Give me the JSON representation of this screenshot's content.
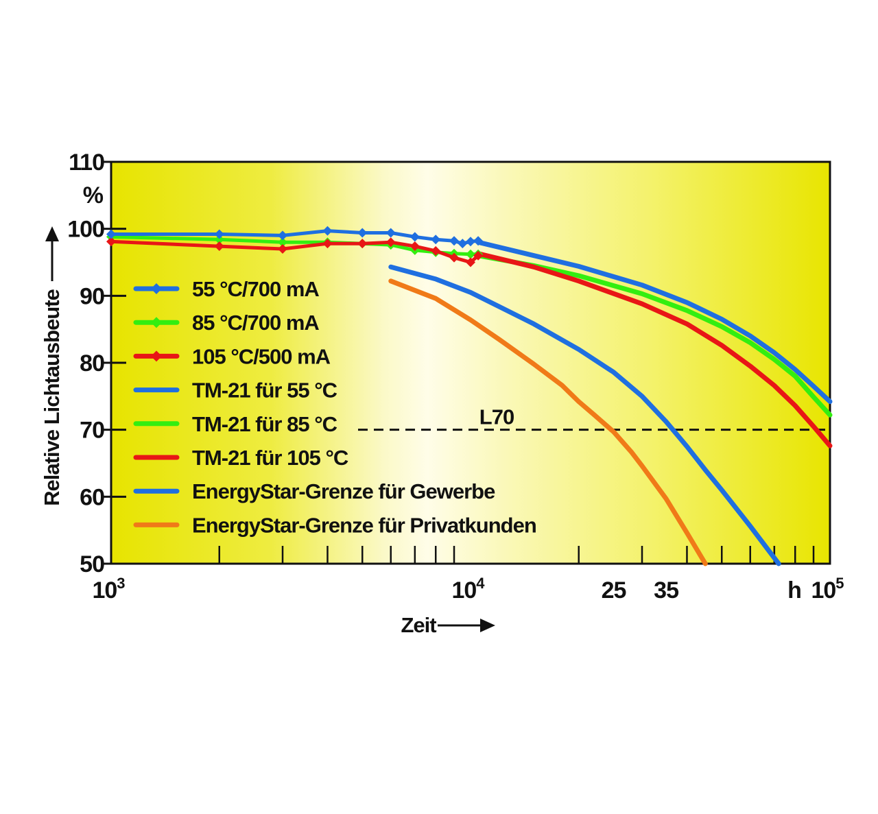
{
  "chart_data": {
    "type": "line",
    "x_scale": "log",
    "xlim": [
      1000,
      100000
    ],
    "ylim": [
      50,
      110
    ],
    "y_unit": "%",
    "ylabel": "Relative Lichtausbeute",
    "xlabel": "Zeit",
    "x_unit": "h",
    "y_ticks": [
      "50",
      "60",
      "70",
      "80",
      "90",
      "100",
      "110"
    ],
    "x_tick_labels": [
      {
        "base": "10",
        "exp": "3",
        "value": 1000
      },
      {
        "base": "10",
        "exp": "4",
        "value": 10000
      },
      {
        "base": "25",
        "exp": "",
        "value": 25000
      },
      {
        "base": "35",
        "exp": "",
        "value": 35000
      },
      {
        "base": "10",
        "exp": "5",
        "value": 100000
      }
    ],
    "reference_line": {
      "label": "L70",
      "y": 70,
      "x_from": 5000,
      "x_to": 100000
    },
    "legend_position": "left",
    "series": [
      {
        "name": "55 °C/700 mA",
        "color": "#1f6fe0",
        "kind": "measured",
        "x": [
          1000,
          2000,
          3000,
          4000,
          5000,
          6000,
          7000,
          8000,
          9000,
          9500,
          10000,
          10500
        ],
        "y": [
          99.2,
          99.2,
          99.0,
          99.7,
          99.4,
          99.4,
          98.8,
          98.4,
          98.2,
          97.8,
          98.1,
          98.2
        ]
      },
      {
        "name": "85 °C/700 mA",
        "color": "#33ee10",
        "kind": "measured",
        "x": [
          1000,
          2000,
          3000,
          4000,
          5000,
          6000,
          7000,
          8000,
          9000,
          10000,
          10500
        ],
        "y": [
          98.8,
          98.4,
          98.0,
          98.0,
          97.8,
          97.6,
          96.8,
          96.5,
          96.3,
          96.2,
          96.2
        ]
      },
      {
        "name": "105 °C/500 mA",
        "color": "#e81616",
        "kind": "measured",
        "x": [
          1000,
          2000,
          3000,
          4000,
          5000,
          6000,
          7000,
          8000,
          9000,
          10000,
          10500
        ],
        "y": [
          98.1,
          97.4,
          97.0,
          97.8,
          97.8,
          98.0,
          97.4,
          96.7,
          95.7,
          95.0,
          96.0
        ]
      },
      {
        "name": "TM-21 für 55 °C",
        "color": "#1f6fe0",
        "kind": "projection",
        "x": [
          10500,
          15000,
          20000,
          30000,
          40000,
          50000,
          60000,
          70000,
          80000,
          90000,
          100000
        ],
        "y": [
          98.0,
          96.0,
          94.4,
          91.6,
          89.0,
          86.5,
          84.0,
          81.5,
          79.0,
          76.5,
          74.2
        ]
      },
      {
        "name": "TM-21 für 85 °C",
        "color": "#33ee10",
        "kind": "projection",
        "x": [
          10500,
          15000,
          20000,
          30000,
          40000,
          50000,
          60000,
          70000,
          80000,
          90000,
          100000
        ],
        "y": [
          96.0,
          94.5,
          93.0,
          90.3,
          87.8,
          85.4,
          83.0,
          80.5,
          78.0,
          74.9,
          72.2
        ]
      },
      {
        "name": "TM-21 für 105 °C",
        "color": "#e81616",
        "kind": "projection",
        "x": [
          10500,
          15000,
          20000,
          30000,
          40000,
          50000,
          60000,
          70000,
          80000,
          90000,
          100000
        ],
        "y": [
          96.3,
          94.3,
          92.2,
          88.8,
          85.8,
          82.6,
          79.5,
          76.6,
          73.6,
          70.5,
          67.6
        ]
      },
      {
        "name": "EnergyStar-Grenze für Gewerbe",
        "color": "#1f6fe0",
        "kind": "limit",
        "x": [
          6000,
          8000,
          10000,
          12000,
          15000,
          20000,
          25000,
          30000,
          35000,
          40000,
          45000,
          50000,
          60000,
          72000
        ],
        "y": [
          94.3,
          92.5,
          90.5,
          88.4,
          85.8,
          82.0,
          78.6,
          75.0,
          71.2,
          67.5,
          64.0,
          61.0,
          55.6,
          50.0
        ]
      },
      {
        "name": "EnergyStar-Grenze für Privatkunden",
        "color": "#f07a18",
        "kind": "limit",
        "x": [
          6000,
          8000,
          10000,
          12000,
          15000,
          18000,
          20000,
          22000,
          25000,
          28000,
          30000,
          35000,
          40000,
          45000
        ],
        "y": [
          92.2,
          89.6,
          86.4,
          83.5,
          79.8,
          76.6,
          74.2,
          72.3,
          69.7,
          66.7,
          64.6,
          59.7,
          54.6,
          50.0
        ]
      }
    ]
  }
}
